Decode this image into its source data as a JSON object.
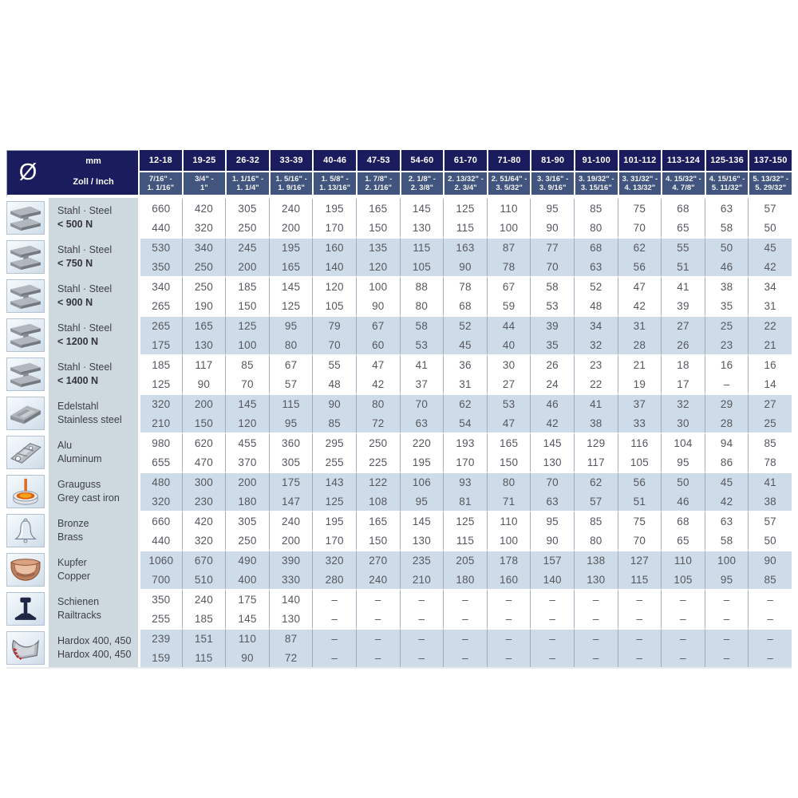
{
  "table": {
    "corner": {
      "diameter_symbol": "Ø",
      "row1_label": "mm",
      "row2_label": "Zoll / Inch"
    },
    "columns": [
      {
        "mm": "12-18",
        "inch1": "7/16\" -",
        "inch2": "1. 1/16\""
      },
      {
        "mm": "19-25",
        "inch1": "3/4\" -",
        "inch2": "1\""
      },
      {
        "mm": "26-32",
        "inch1": "1. 1/16\" -",
        "inch2": "1. 1/4\""
      },
      {
        "mm": "33-39",
        "inch1": "1. 5/16\" -",
        "inch2": "1. 9/16\""
      },
      {
        "mm": "40-46",
        "inch1": "1. 5/8\" -",
        "inch2": "1. 13/16\""
      },
      {
        "mm": "47-53",
        "inch1": "1. 7/8\" -",
        "inch2": "2. 1/16\""
      },
      {
        "mm": "54-60",
        "inch1": "2. 1/8\" -",
        "inch2": "2. 3/8\""
      },
      {
        "mm": "61-70",
        "inch1": "2. 13/32\" -",
        "inch2": "2. 3/4\""
      },
      {
        "mm": "71-80",
        "inch1": "2. 51/64\" -",
        "inch2": "3. 5/32\""
      },
      {
        "mm": "81-90",
        "inch1": "3. 3/16\" -",
        "inch2": "3. 9/16\""
      },
      {
        "mm": "91-100",
        "inch1": "3. 19/32\" -",
        "inch2": "3. 15/16\""
      },
      {
        "mm": "101-112",
        "inch1": "3. 31/32\" -",
        "inch2": "4. 13/32\""
      },
      {
        "mm": "113-124",
        "inch1": "4. 15/32\" -",
        "inch2": "4. 7/8\""
      },
      {
        "mm": "125-136",
        "inch1": "4. 15/16\" -",
        "inch2": "5. 11/32\""
      },
      {
        "mm": "137-150",
        "inch1": "5. 13/32\" -",
        "inch2": "5. 29/32\""
      }
    ],
    "materials": [
      {
        "icon": "i-beam-icon",
        "line1": "Stahl · Steel",
        "line2": "< 500 N",
        "emphasis2": true,
        "top": [
          "660",
          "420",
          "305",
          "240",
          "195",
          "165",
          "145",
          "125",
          "110",
          "95",
          "85",
          "75",
          "68",
          "63",
          "57"
        ],
        "bottom": [
          "440",
          "320",
          "250",
          "200",
          "170",
          "150",
          "130",
          "115",
          "100",
          "90",
          "80",
          "70",
          "65",
          "58",
          "50"
        ]
      },
      {
        "icon": "i-beam-icon",
        "line1": "Stahl · Steel",
        "line2": "< 750 N",
        "emphasis2": true,
        "top": [
          "530",
          "340",
          "245",
          "195",
          "160",
          "135",
          "115",
          "163",
          "87",
          "77",
          "68",
          "62",
          "55",
          "50",
          "45"
        ],
        "bottom": [
          "350",
          "250",
          "200",
          "165",
          "140",
          "120",
          "105",
          "90",
          "78",
          "70",
          "63",
          "56",
          "51",
          "46",
          "42"
        ]
      },
      {
        "icon": "i-beam-icon",
        "line1": "Stahl · Steel",
        "line2": "< 900 N",
        "emphasis2": true,
        "top": [
          "340",
          "250",
          "185",
          "145",
          "120",
          "100",
          "88",
          "78",
          "67",
          "58",
          "52",
          "47",
          "41",
          "38",
          "34"
        ],
        "bottom": [
          "265",
          "190",
          "150",
          "125",
          "105",
          "90",
          "80",
          "68",
          "59",
          "53",
          "48",
          "42",
          "39",
          "35",
          "31"
        ]
      },
      {
        "icon": "i-beam-icon",
        "line1": "Stahl · Steel",
        "line2": "< 1200 N",
        "emphasis2": true,
        "top": [
          "265",
          "165",
          "125",
          "95",
          "79",
          "67",
          "58",
          "52",
          "44",
          "39",
          "34",
          "31",
          "27",
          "25",
          "22"
        ],
        "bottom": [
          "175",
          "130",
          "100",
          "80",
          "70",
          "60",
          "53",
          "45",
          "40",
          "35",
          "32",
          "28",
          "26",
          "23",
          "21"
        ]
      },
      {
        "icon": "i-beam-icon",
        "line1": "Stahl · Steel",
        "line2": "< 1400 N",
        "emphasis2": true,
        "top": [
          "185",
          "117",
          "85",
          "67",
          "55",
          "47",
          "41",
          "36",
          "30",
          "26",
          "23",
          "21",
          "18",
          "16",
          "16"
        ],
        "bottom": [
          "125",
          "90",
          "70",
          "57",
          "48",
          "42",
          "37",
          "31",
          "27",
          "24",
          "22",
          "19",
          "17",
          "–",
          "14"
        ]
      },
      {
        "icon": "stainless-sheet-icon",
        "line1": "Edelstahl",
        "line2": "Stainless steel",
        "emphasis2": false,
        "top": [
          "320",
          "200",
          "145",
          "115",
          "90",
          "80",
          "70",
          "62",
          "53",
          "46",
          "41",
          "37",
          "32",
          "29",
          "27"
        ],
        "bottom": [
          "210",
          "150",
          "120",
          "95",
          "85",
          "72",
          "63",
          "54",
          "47",
          "42",
          "38",
          "33",
          "30",
          "28",
          "25"
        ]
      },
      {
        "icon": "alu-profile-icon",
        "line1": "Alu",
        "line2": "Aluminum",
        "emphasis2": false,
        "top": [
          "980",
          "620",
          "455",
          "360",
          "295",
          "250",
          "220",
          "193",
          "165",
          "145",
          "129",
          "116",
          "104",
          "94",
          "85"
        ],
        "bottom": [
          "655",
          "470",
          "370",
          "305",
          "255",
          "225",
          "195",
          "170",
          "150",
          "130",
          "117",
          "105",
          "95",
          "86",
          "78"
        ]
      },
      {
        "icon": "crucible-icon",
        "line1": "Grauguss",
        "line2": "Grey cast iron",
        "emphasis2": false,
        "top": [
          "480",
          "300",
          "200",
          "175",
          "143",
          "122",
          "106",
          "93",
          "80",
          "70",
          "62",
          "56",
          "50",
          "45",
          "41"
        ],
        "bottom": [
          "320",
          "230",
          "180",
          "147",
          "125",
          "108",
          "95",
          "81",
          "71",
          "63",
          "57",
          "51",
          "46",
          "42",
          "38"
        ]
      },
      {
        "icon": "bell-icon",
        "line1": "Bronze",
        "line2": "Brass",
        "emphasis2": false,
        "top": [
          "660",
          "420",
          "305",
          "240",
          "195",
          "165",
          "145",
          "125",
          "110",
          "95",
          "85",
          "75",
          "68",
          "63",
          "57"
        ],
        "bottom": [
          "440",
          "320",
          "250",
          "200",
          "170",
          "150",
          "130",
          "115",
          "100",
          "90",
          "80",
          "70",
          "65",
          "58",
          "50"
        ]
      },
      {
        "icon": "gutter-icon",
        "line1": "Kupfer",
        "line2": "Copper",
        "emphasis2": false,
        "top": [
          "1060",
          "670",
          "490",
          "390",
          "320",
          "270",
          "235",
          "205",
          "178",
          "157",
          "138",
          "127",
          "110",
          "100",
          "90"
        ],
        "bottom": [
          "700",
          "510",
          "400",
          "330",
          "280",
          "240",
          "210",
          "180",
          "160",
          "140",
          "130",
          "115",
          "105",
          "95",
          "85"
        ]
      },
      {
        "icon": "rail-icon",
        "line1": "Schienen",
        "line2": "Railtracks",
        "emphasis2": false,
        "top": [
          "350",
          "240",
          "175",
          "140",
          "–",
          "–",
          "–",
          "–",
          "–",
          "–",
          "–",
          "–",
          "–",
          "–",
          "–"
        ],
        "bottom": [
          "255",
          "185",
          "145",
          "130",
          "–",
          "–",
          "–",
          "–",
          "–",
          "–",
          "–",
          "–",
          "–",
          "–",
          "–"
        ]
      },
      {
        "icon": "bucket-icon",
        "line1": "Hardox 400, 450",
        "line2": "Hardox 400, 450",
        "emphasis2": false,
        "top": [
          "239",
          "151",
          "110",
          "87",
          "–",
          "–",
          "–",
          "–",
          "–",
          "–",
          "–",
          "–",
          "–",
          "–",
          "–"
        ],
        "bottom": [
          "159",
          "115",
          "90",
          "72",
          "–",
          "–",
          "–",
          "–",
          "–",
          "–",
          "–",
          "–",
          "–",
          "–",
          "–"
        ]
      }
    ]
  },
  "colors": {
    "header_navy": "#1b1c5e",
    "header_steel_blue": "#41557f",
    "row_stripe_blue": "#cedce9",
    "label_column_bg": "#ced8df",
    "value_text": "#55575d"
  }
}
